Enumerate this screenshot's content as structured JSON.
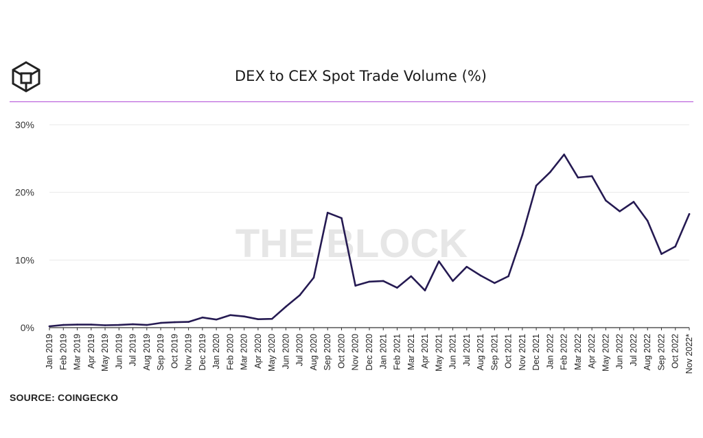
{
  "source": "SOURCE: COINGECKO",
  "watermark": "THE BLOCK",
  "colors": {
    "line": "#251a52",
    "divider": "#b14bd6",
    "grid": "#e8e8e8"
  },
  "chart_data": {
    "type": "line",
    "title": "DEX to CEX Spot Trade Volume (%)",
    "xlabel": "",
    "ylabel": "",
    "ylim": [
      0,
      30
    ],
    "yticks": [
      "0%",
      "10%",
      "20%",
      "30%"
    ],
    "grid": true,
    "categories": [
      "Jan 2019",
      "Feb 2019",
      "Mar 2019",
      "Apr 2019",
      "May 2019",
      "Jun 2019",
      "Jul 2019",
      "Aug 2019",
      "Sep 2019",
      "Oct 2019",
      "Nov 2019",
      "Dec 2019",
      "Jan 2020",
      "Feb 2020",
      "Mar 2020",
      "Apr 2020",
      "May 2020",
      "Jun 2020",
      "Jul 2020",
      "Aug 2020",
      "Sep 2020",
      "Oct 2020",
      "Nov 2020",
      "Dec 2020",
      "Jan 2021",
      "Feb 2021",
      "Mar 2021",
      "Apr 2021",
      "May 2021",
      "Jun 2021",
      "Jul 2021",
      "Aug 2021",
      "Sep 2021",
      "Oct 2021",
      "Nov 2021",
      "Dec 2021",
      "Jan 2022",
      "Feb 2022",
      "Mar 2022",
      "Apr 2022",
      "May 2022",
      "Jun 2022",
      "Jul 2022",
      "Aug 2022",
      "Sep 2022",
      "Oct 2022",
      "Nov 2022*"
    ],
    "series": [
      {
        "values": [
          0.2,
          0.4,
          0.45,
          0.45,
          0.35,
          0.4,
          0.5,
          0.4,
          0.7,
          0.8,
          0.85,
          1.5,
          1.2,
          1.85,
          1.65,
          1.25,
          1.3,
          3.1,
          4.8,
          7.4,
          17.0,
          16.2,
          6.2,
          6.8,
          6.9,
          5.9,
          7.6,
          5.5,
          9.8,
          6.9,
          9.0,
          7.7,
          6.6,
          7.6,
          13.7,
          21.0,
          23.0,
          25.6,
          22.2,
          22.4,
          18.8,
          17.2,
          18.6,
          15.8,
          10.9,
          12.0,
          16.8
        ]
      }
    ]
  }
}
